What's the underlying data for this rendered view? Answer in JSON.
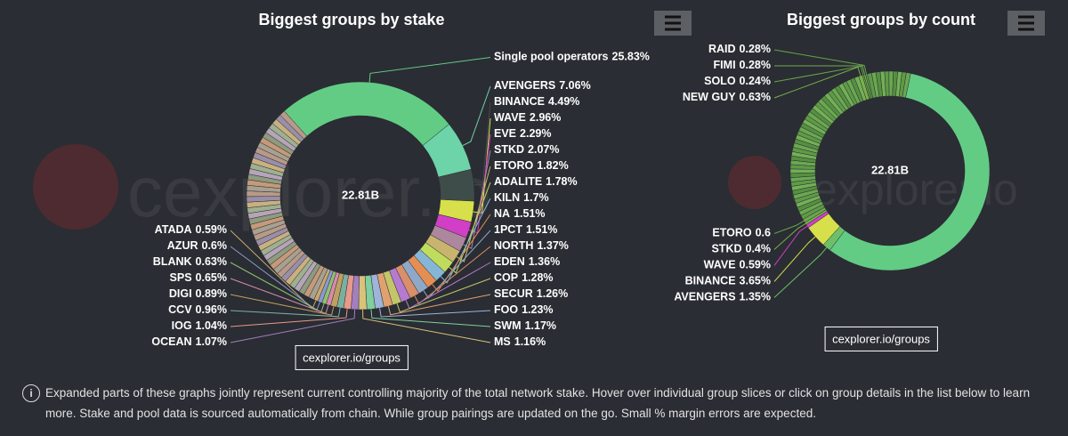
{
  "chart_data": [
    {
      "type": "pie",
      "title": "Biggest groups by stake",
      "center_label": "22.81B",
      "credit": "cexplorer.io/groups",
      "watermark": "cexplorer.io",
      "categories": [
        "Single pool operators",
        "AVENGERS",
        "BINANCE",
        "WAVE",
        "EVE",
        "STKD",
        "ETORO",
        "ADALITE",
        "KILN",
        "NA",
        "1PCT",
        "NORTH",
        "EDEN",
        "COP",
        "SECUR",
        "FOO",
        "SWM",
        "MS",
        "OCEAN",
        "IOG",
        "CCV",
        "DIGI",
        "SPS",
        "BLANK",
        "AZUR",
        "ATADA",
        null,
        null,
        null,
        null,
        null,
        null,
        null,
        null,
        null,
        null,
        null,
        null,
        null,
        null,
        null,
        null,
        null,
        null,
        null,
        null,
        null,
        null,
        null,
        null,
        null,
        null,
        null,
        null,
        null,
        null,
        null,
        null,
        null,
        null,
        null,
        null,
        null,
        null,
        null,
        null
      ],
      "values": [
        25.83,
        7.06,
        4.49,
        2.96,
        2.29,
        2.07,
        1.82,
        1.78,
        1.7,
        1.51,
        1.51,
        1.37,
        1.36,
        1.28,
        1.26,
        1.23,
        1.17,
        1.16,
        1.07,
        1.04,
        0.96,
        0.89,
        0.65,
        0.63,
        0.6,
        0.59,
        0.79,
        0.79,
        0.79,
        0.79,
        0.79,
        0.79,
        0.79,
        0.79,
        0.79,
        0.79,
        0.79,
        0.79,
        0.79,
        0.79,
        0.79,
        0.79,
        0.79,
        0.79,
        0.79,
        0.79,
        0.79,
        0.79,
        0.79,
        0.79,
        0.79,
        0.79,
        0.79,
        0.79,
        0.79,
        0.79,
        0.79,
        0.79,
        0.79,
        0.79,
        0.79,
        0.79,
        0.79,
        0.79,
        0.79,
        0.79
      ],
      "value_labels": [
        "25.83%",
        "7.06%",
        "4.49%",
        "2.96%",
        "2.29%",
        "2.07%",
        "1.82%",
        "1.78%",
        "1.7%",
        "1.51%",
        "1.51%",
        "1.37%",
        "1.36%",
        "1.28%",
        "1.26%",
        "1.23%",
        "1.17%",
        "1.16%",
        "1.07%",
        "1.04%",
        "0.96%",
        "0.89%",
        "0.65%",
        "0.63%",
        "0.6%",
        "0.59%",
        null,
        null,
        null,
        null,
        null,
        null,
        null,
        null,
        null,
        null,
        null,
        null,
        null,
        null,
        null,
        null,
        null,
        null,
        null,
        null,
        null,
        null,
        null,
        null,
        null,
        null,
        null,
        null,
        null,
        null,
        null,
        null,
        null,
        null,
        null,
        null,
        null,
        null,
        null,
        null
      ],
      "colors": [
        "#62cc85",
        "#6dd3a8",
        "#3f4d4a",
        "#d7e04b",
        "#d13fc6",
        "#ad879d",
        "#c9b46e",
        "#bfdc5c",
        "#86b6d6",
        "#e58e54",
        "#8fa8c8",
        "#d98f6a",
        "#b57bd0",
        "#c4c46a",
        "#e0a070",
        "#9fb4d9",
        "#7fcf9f",
        "#d9c27a",
        "#a47fbf",
        "#e89a8a",
        "#7ab0a0",
        "#c0a060",
        "#d88ab0",
        "#90c070",
        "#8a9ad0",
        "#c9a86f",
        "#a8a090",
        "#c49a7a",
        "#8f9a7e",
        "#b5a5b8",
        "#9fb090",
        "#c8b080",
        "#9a8fa8",
        "#b89a88",
        "#a8a090",
        "#c49a7a",
        "#8f9a7e",
        "#b5a5b8",
        "#9fb090",
        "#c8b080",
        "#9a8fa8",
        "#b89a88",
        "#a8a090",
        "#c49a7a",
        "#8f9a7e",
        "#b5a5b8",
        "#9fb090",
        "#c8b080",
        "#9a8fa8",
        "#b89a88",
        "#a8a090",
        "#c49a7a",
        "#8f9a7e",
        "#b5a5b8",
        "#9fb090",
        "#c8b080",
        "#9a8fa8",
        "#b89a88",
        "#a8a090",
        "#c49a7a",
        "#8f9a7e",
        "#b5a5b8",
        "#9fb090",
        "#c8b080",
        "#9a8fa8",
        "#b89a88"
      ]
    },
    {
      "type": "pie",
      "title": "Biggest groups by count",
      "center_label": "22.81B",
      "credit": "cexplorer.io/groups",
      "watermark": "cexplorer.io",
      "categories": [
        null,
        "AVENGERS",
        "BINANCE",
        "WAVE",
        "STKD",
        "ETORO",
        null,
        null,
        null,
        null,
        null,
        null,
        null,
        null,
        null,
        null,
        null,
        null,
        null,
        null,
        null,
        null,
        null,
        null,
        null,
        null,
        null,
        null,
        null,
        null,
        null,
        null,
        null,
        null,
        null,
        null,
        null,
        null,
        null,
        null,
        null,
        null,
        null,
        null,
        null,
        null,
        "NEW GUY",
        "SOLO",
        "FIMI",
        "RAID",
        null,
        null,
        null,
        null,
        null,
        null,
        null,
        null,
        null,
        null
      ],
      "values": [
        57,
        1.35,
        3.65,
        0.59,
        0.4,
        0.6,
        0.7,
        0.7,
        0.7,
        0.7,
        0.7,
        0.7,
        0.7,
        0.7,
        0.7,
        0.7,
        0.7,
        0.7,
        0.7,
        0.7,
        0.7,
        0.7,
        0.7,
        0.7,
        0.7,
        0.7,
        0.7,
        0.7,
        0.7,
        0.7,
        0.7,
        0.7,
        0.7,
        0.7,
        0.7,
        0.7,
        0.7,
        0.7,
        0.7,
        0.7,
        0.7,
        0.7,
        0.7,
        0.7,
        0.7,
        0.7,
        0.63,
        0.24,
        0.28,
        0.28,
        0.7,
        0.7,
        0.7,
        0.7,
        0.7,
        0.7,
        0.7,
        0.7,
        0.7,
        0.7
      ],
      "value_labels": [
        null,
        "1.35%",
        "3.65%",
        "0.59%",
        "0.4%",
        "0.6",
        null,
        null,
        null,
        null,
        null,
        null,
        null,
        null,
        null,
        null,
        null,
        null,
        null,
        null,
        null,
        null,
        null,
        null,
        null,
        null,
        null,
        null,
        null,
        null,
        null,
        null,
        null,
        null,
        null,
        null,
        null,
        null,
        null,
        null,
        null,
        null,
        null,
        null,
        null,
        null,
        "0.63%",
        "0.24%",
        "0.28%",
        "0.28%",
        null,
        null,
        null,
        null,
        null,
        null,
        null,
        null,
        null,
        null
      ],
      "colors": [
        "#62cc85",
        "#6dbf6a",
        "#d7e04b",
        "#d13fc6",
        "#7ab04a",
        "#6aa84f",
        "#5f9a48",
        "#6aa850",
        "#578f42",
        "#73b055",
        "#5f9a48",
        "#6aa850",
        "#578f42",
        "#73b055",
        "#5f9a48",
        "#6aa850",
        "#578f42",
        "#73b055",
        "#5f9a48",
        "#6aa850",
        "#578f42",
        "#73b055",
        "#5f9a48",
        "#6aa850",
        "#578f42",
        "#73b055",
        "#5f9a48",
        "#6aa850",
        "#578f42",
        "#73b055",
        "#5f9a48",
        "#6aa850",
        "#578f42",
        "#73b055",
        "#5f9a48",
        "#6aa850",
        "#578f42",
        "#73b055",
        "#5f9a48",
        "#6aa850",
        "#578f42",
        "#73b055",
        "#5f9a48",
        "#6aa850",
        "#578f42",
        "#73b055",
        "#7ab04a",
        "#68a64c",
        "#70ac50",
        "#65a24a",
        "#5f9a48",
        "#6aa850",
        "#578f42",
        "#73b055",
        "#5f9a48",
        "#6aa850",
        "#578f42",
        "#73b055",
        "#5f9a48",
        "#6aa850"
      ]
    }
  ],
  "note": "Expanded parts of these graphs jointly represent current controlling majority of the total network stake. Hover over individual group slices or click on group details in the list below to learn more. Stake and pool data is sourced automatically from chain. While group pairings are updated on the go. Small % margin errors are expected."
}
